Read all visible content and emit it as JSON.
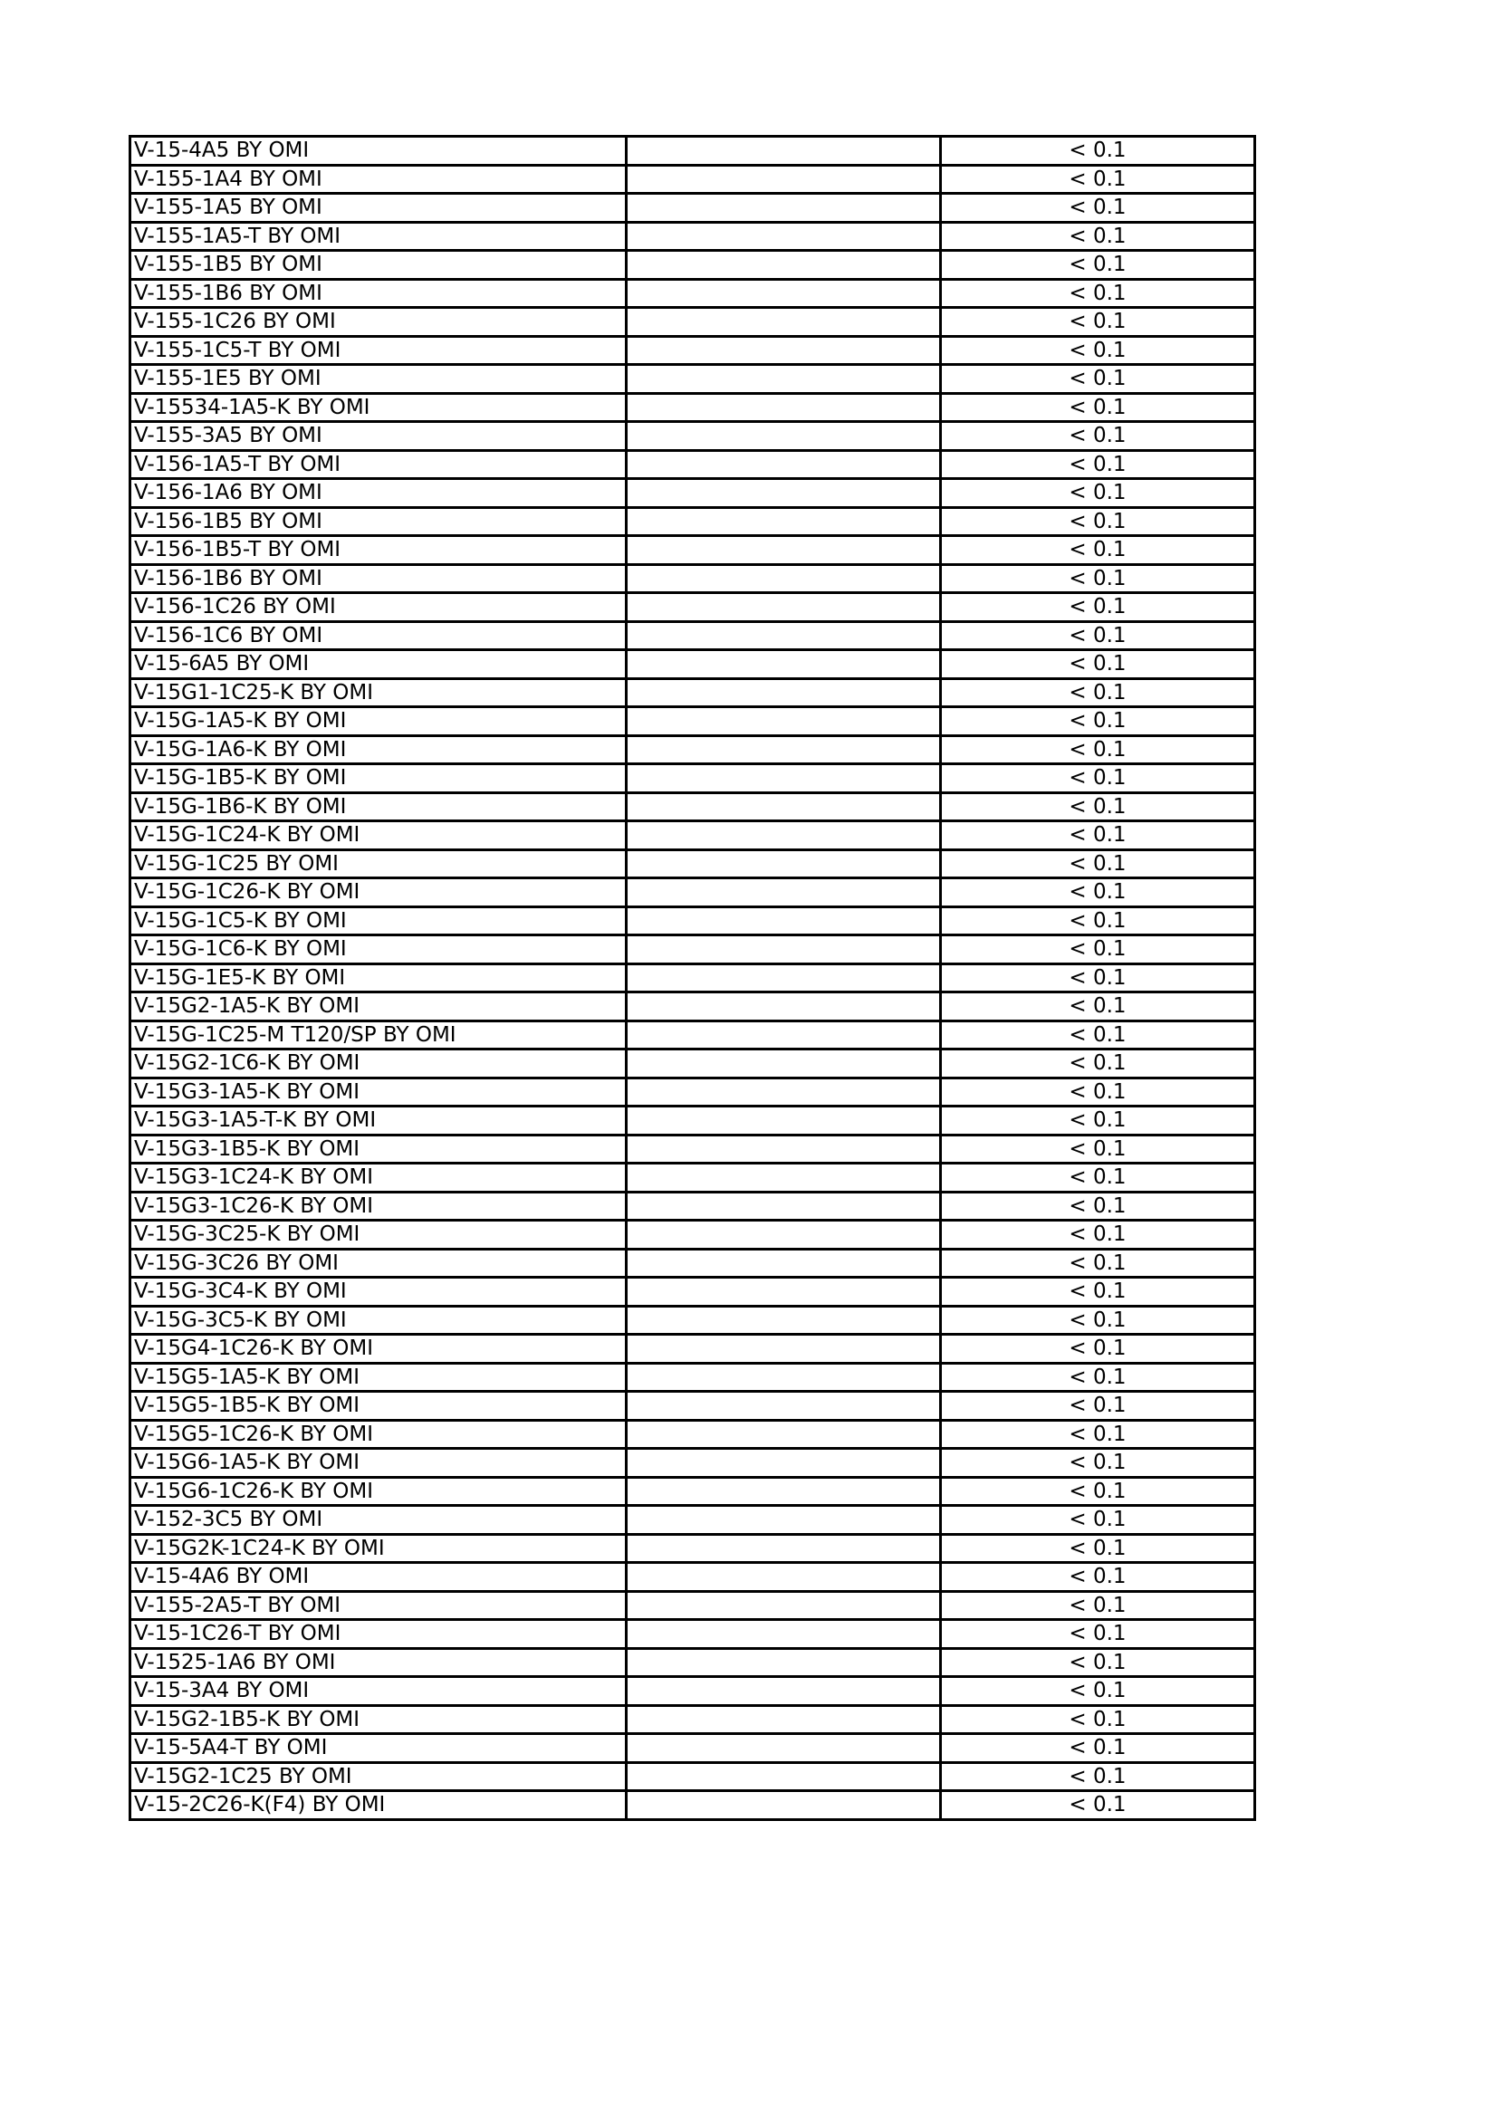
{
  "table": {
    "rows": [
      {
        "name": "V-15-4A5 BY OMI",
        "blank": "",
        "value": "< 0.1"
      },
      {
        "name": "V-155-1A4 BY OMI",
        "blank": "",
        "value": "< 0.1"
      },
      {
        "name": "V-155-1A5 BY OMI",
        "blank": "",
        "value": "< 0.1"
      },
      {
        "name": "V-155-1A5-T BY OMI",
        "blank": "",
        "value": "< 0.1"
      },
      {
        "name": "V-155-1B5 BY OMI",
        "blank": "",
        "value": "< 0.1"
      },
      {
        "name": "V-155-1B6 BY OMI",
        "blank": "",
        "value": "< 0.1"
      },
      {
        "name": "V-155-1C26 BY OMI",
        "blank": "",
        "value": "< 0.1"
      },
      {
        "name": "V-155-1C5-T BY OMI",
        "blank": "",
        "value": "< 0.1"
      },
      {
        "name": "V-155-1E5 BY OMI",
        "blank": "",
        "value": "< 0.1"
      },
      {
        "name": "V-15534-1A5-K BY OMI",
        "blank": "",
        "value": "< 0.1"
      },
      {
        "name": "V-155-3A5 BY OMI",
        "blank": "",
        "value": "< 0.1"
      },
      {
        "name": "V-156-1A5-T BY OMI",
        "blank": "",
        "value": "< 0.1"
      },
      {
        "name": "V-156-1A6 BY OMI",
        "blank": "",
        "value": "< 0.1"
      },
      {
        "name": "V-156-1B5 BY OMI",
        "blank": "",
        "value": "< 0.1"
      },
      {
        "name": "V-156-1B5-T BY OMI",
        "blank": "",
        "value": "< 0.1"
      },
      {
        "name": "V-156-1B6 BY OMI",
        "blank": "",
        "value": "< 0.1"
      },
      {
        "name": "V-156-1C26 BY OMI",
        "blank": "",
        "value": "< 0.1"
      },
      {
        "name": "V-156-1C6 BY OMI",
        "blank": "",
        "value": "< 0.1"
      },
      {
        "name": "V-15-6A5 BY OMI",
        "blank": "",
        "value": "< 0.1"
      },
      {
        "name": "V-15G1-1C25-K BY OMI",
        "blank": "",
        "value": "< 0.1"
      },
      {
        "name": "V-15G-1A5-K BY OMI",
        "blank": "",
        "value": "< 0.1"
      },
      {
        "name": "V-15G-1A6-K BY OMI",
        "blank": "",
        "value": "< 0.1"
      },
      {
        "name": "V-15G-1B5-K BY OMI",
        "blank": "",
        "value": "< 0.1"
      },
      {
        "name": "V-15G-1B6-K BY OMI",
        "blank": "",
        "value": "< 0.1"
      },
      {
        "name": "V-15G-1C24-K BY OMI",
        "blank": "",
        "value": "< 0.1"
      },
      {
        "name": "V-15G-1C25 BY OMI",
        "blank": "",
        "value": "< 0.1"
      },
      {
        "name": "V-15G-1C26-K BY OMI",
        "blank": "",
        "value": "< 0.1"
      },
      {
        "name": "V-15G-1C5-K BY OMI",
        "blank": "",
        "value": "< 0.1"
      },
      {
        "name": "V-15G-1C6-K BY OMI",
        "blank": "",
        "value": "< 0.1"
      },
      {
        "name": "V-15G-1E5-K BY OMI",
        "blank": "",
        "value": "< 0.1"
      },
      {
        "name": "V-15G2-1A5-K BY OMI",
        "blank": "",
        "value": "< 0.1"
      },
      {
        "name": "V-15G-1C25-M T120/SP BY OMI",
        "blank": "",
        "value": "< 0.1"
      },
      {
        "name": "V-15G2-1C6-K BY OMI",
        "blank": "",
        "value": "< 0.1"
      },
      {
        "name": "V-15G3-1A5-K BY OMI",
        "blank": "",
        "value": "< 0.1"
      },
      {
        "name": "V-15G3-1A5-T-K BY OMI",
        "blank": "",
        "value": "< 0.1"
      },
      {
        "name": "V-15G3-1B5-K BY OMI",
        "blank": "",
        "value": "< 0.1"
      },
      {
        "name": "V-15G3-1C24-K BY OMI",
        "blank": "",
        "value": "< 0.1"
      },
      {
        "name": "V-15G3-1C26-K BY OMI",
        "blank": "",
        "value": "< 0.1"
      },
      {
        "name": "V-15G-3C25-K BY OMI",
        "blank": "",
        "value": "< 0.1"
      },
      {
        "name": "V-15G-3C26 BY OMI",
        "blank": "",
        "value": "< 0.1"
      },
      {
        "name": "V-15G-3C4-K BY OMI",
        "blank": "",
        "value": "< 0.1"
      },
      {
        "name": "V-15G-3C5-K BY OMI",
        "blank": "",
        "value": "< 0.1"
      },
      {
        "name": "V-15G4-1C26-K BY OMI",
        "blank": "",
        "value": "< 0.1"
      },
      {
        "name": "V-15G5-1A5-K BY OMI",
        "blank": "",
        "value": "< 0.1"
      },
      {
        "name": "V-15G5-1B5-K BY OMI",
        "blank": "",
        "value": "< 0.1"
      },
      {
        "name": "V-15G5-1C26-K BY OMI",
        "blank": "",
        "value": "< 0.1"
      },
      {
        "name": "V-15G6-1A5-K BY OMI",
        "blank": "",
        "value": "< 0.1"
      },
      {
        "name": "V-15G6-1C26-K BY OMI",
        "blank": "",
        "value": "< 0.1"
      },
      {
        "name": "V-152-3C5 BY OMI",
        "blank": "",
        "value": "< 0.1"
      },
      {
        "name": "V-15G2K-1C24-K BY OMI",
        "blank": "",
        "value": "< 0.1"
      },
      {
        "name": "V-15-4A6 BY OMI",
        "blank": "",
        "value": "< 0.1"
      },
      {
        "name": "V-155-2A5-T BY OMI",
        "blank": "",
        "value": "< 0.1"
      },
      {
        "name": "V-15-1C26-T BY OMI",
        "blank": "",
        "value": "< 0.1"
      },
      {
        "name": "V-1525-1A6 BY OMI",
        "blank": "",
        "value": "< 0.1"
      },
      {
        "name": "V-15-3A4 BY OMI",
        "blank": "",
        "value": "< 0.1"
      },
      {
        "name": "V-15G2-1B5-K BY OMI",
        "blank": "",
        "value": "< 0.1"
      },
      {
        "name": "V-15-5A4-T BY OMI",
        "blank": "",
        "value": "< 0.1"
      },
      {
        "name": "V-15G2-1C25 BY OMI",
        "blank": "",
        "value": "< 0.1"
      },
      {
        "name": "V-15-2C26-K(F4) BY OMI",
        "blank": "",
        "value": "< 0.1"
      }
    ]
  }
}
